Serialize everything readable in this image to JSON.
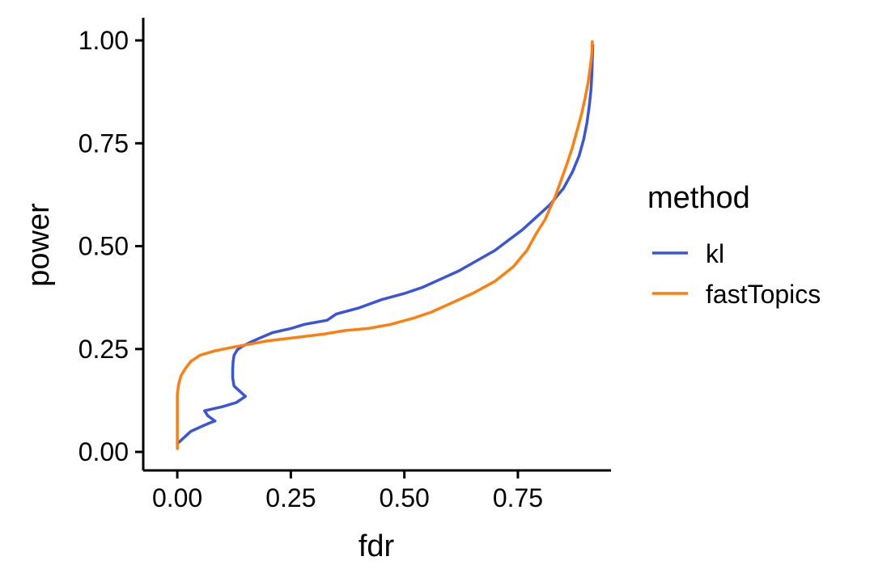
{
  "chart_data": {
    "type": "line",
    "title": "",
    "xlabel": "fdr",
    "ylabel": "power",
    "xlim": [
      -0.075,
      0.955
    ],
    "ylim": [
      -0.045,
      1.055
    ],
    "x_ticks": [
      0.0,
      0.25,
      0.5,
      0.75
    ],
    "x_tick_labels": [
      "0.00",
      "0.25",
      "0.50",
      "0.75"
    ],
    "y_ticks": [
      0.0,
      0.25,
      0.5,
      0.75,
      1.0
    ],
    "y_tick_labels": [
      "0.00",
      "0.25",
      "0.50",
      "0.75",
      "1.00"
    ],
    "grid": false,
    "legend": {
      "title": "method",
      "position": "right"
    },
    "series": [
      {
        "name": "kl",
        "color": "#3b55d9",
        "points": [
          [
            0.0,
            0.02
          ],
          [
            0.005,
            0.025
          ],
          [
            0.01,
            0.03
          ],
          [
            0.02,
            0.04
          ],
          [
            0.03,
            0.05
          ],
          [
            0.05,
            0.06
          ],
          [
            0.07,
            0.07
          ],
          [
            0.083,
            0.075
          ],
          [
            0.067,
            0.088
          ],
          [
            0.06,
            0.1
          ],
          [
            0.1,
            0.11
          ],
          [
            0.13,
            0.12
          ],
          [
            0.15,
            0.135
          ],
          [
            0.14,
            0.145
          ],
          [
            0.125,
            0.16
          ],
          [
            0.122,
            0.18
          ],
          [
            0.122,
            0.2
          ],
          [
            0.123,
            0.22
          ],
          [
            0.125,
            0.235
          ],
          [
            0.132,
            0.248
          ],
          [
            0.142,
            0.256
          ],
          [
            0.16,
            0.266
          ],
          [
            0.18,
            0.276
          ],
          [
            0.21,
            0.29
          ],
          [
            0.25,
            0.3
          ],
          [
            0.28,
            0.31
          ],
          [
            0.33,
            0.32
          ],
          [
            0.35,
            0.335
          ],
          [
            0.4,
            0.35
          ],
          [
            0.45,
            0.37
          ],
          [
            0.5,
            0.385
          ],
          [
            0.54,
            0.4
          ],
          [
            0.58,
            0.42
          ],
          [
            0.62,
            0.44
          ],
          [
            0.66,
            0.465
          ],
          [
            0.7,
            0.49
          ],
          [
            0.73,
            0.515
          ],
          [
            0.76,
            0.54
          ],
          [
            0.79,
            0.57
          ],
          [
            0.82,
            0.6
          ],
          [
            0.85,
            0.64
          ],
          [
            0.87,
            0.68
          ],
          [
            0.885,
            0.72
          ],
          [
            0.895,
            0.76
          ],
          [
            0.902,
            0.8
          ],
          [
            0.907,
            0.84
          ],
          [
            0.911,
            0.88
          ],
          [
            0.913,
            0.92
          ],
          [
            0.914,
            0.96
          ],
          [
            0.915,
            0.99
          ]
        ]
      },
      {
        "name": "fastTopics",
        "color": "#ff7f0e",
        "points": [
          [
            0.0,
            0.005
          ],
          [
            0.0,
            0.05
          ],
          [
            0.0,
            0.1
          ],
          [
            0.0,
            0.14
          ],
          [
            0.003,
            0.165
          ],
          [
            0.008,
            0.185
          ],
          [
            0.018,
            0.203
          ],
          [
            0.03,
            0.22
          ],
          [
            0.05,
            0.235
          ],
          [
            0.08,
            0.245
          ],
          [
            0.12,
            0.254
          ],
          [
            0.16,
            0.262
          ],
          [
            0.2,
            0.27
          ],
          [
            0.26,
            0.278
          ],
          [
            0.32,
            0.286
          ],
          [
            0.37,
            0.295
          ],
          [
            0.42,
            0.3
          ],
          [
            0.47,
            0.31
          ],
          [
            0.52,
            0.325
          ],
          [
            0.56,
            0.34
          ],
          [
            0.6,
            0.36
          ],
          [
            0.65,
            0.385
          ],
          [
            0.7,
            0.415
          ],
          [
            0.74,
            0.45
          ],
          [
            0.77,
            0.49
          ],
          [
            0.79,
            0.53
          ],
          [
            0.81,
            0.565
          ],
          [
            0.82,
            0.59
          ],
          [
            0.832,
            0.62
          ],
          [
            0.845,
            0.66
          ],
          [
            0.858,
            0.7
          ],
          [
            0.87,
            0.74
          ],
          [
            0.88,
            0.78
          ],
          [
            0.89,
            0.82
          ],
          [
            0.898,
            0.86
          ],
          [
            0.905,
            0.9
          ],
          [
            0.91,
            0.94
          ],
          [
            0.913,
            0.97
          ],
          [
            0.914,
            1.0
          ]
        ]
      }
    ]
  }
}
